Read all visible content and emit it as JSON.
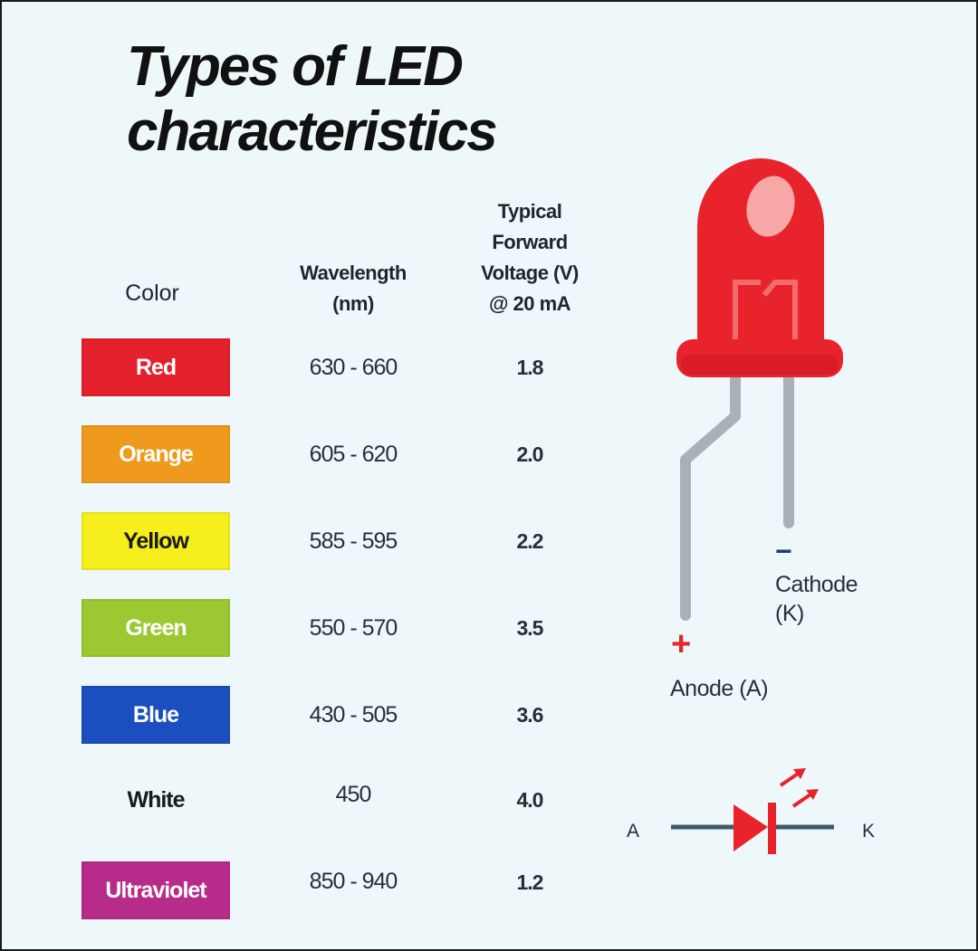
{
  "title": {
    "line1": "Types of LED",
    "line2": "characteristics"
  },
  "headers": {
    "color": "Color",
    "wavelength": [
      "Wavelength",
      "(nm)"
    ],
    "voltage": [
      "Typical",
      "Forward",
      "Voltage (V)",
      "@ 20 mA"
    ]
  },
  "rows": [
    {
      "color": "Red",
      "wavelength": "630 - 660",
      "voltage": "1.8",
      "swatch": "#e3202c",
      "text_color": "#ffffff"
    },
    {
      "color": "Orange",
      "wavelength": "605 - 620",
      "voltage": "2.0",
      "swatch": "#ef9a1c",
      "text_color": "#ffffff"
    },
    {
      "color": "Yellow",
      "wavelength": "585 - 595",
      "voltage": "2.2",
      "swatch": "#f7ee1d",
      "text_color": "#1a1a1a"
    },
    {
      "color": "Green",
      "wavelength": "550 - 570",
      "voltage": "3.5",
      "swatch": "#9cc932",
      "text_color": "#ffffff"
    },
    {
      "color": "Blue",
      "wavelength": "430 - 505",
      "voltage": "3.6",
      "swatch": "#1b4fc0",
      "text_color": "#ffffff"
    },
    {
      "color": "White",
      "wavelength": "450",
      "voltage": "4.0",
      "swatch": "transparent",
      "text_color": "#1a1a1a"
    },
    {
      "color": "Ultraviolet",
      "wavelength": "850 - 940",
      "voltage": "1.2",
      "swatch": "#b72b8a",
      "text_color": "#ffffff"
    }
  ],
  "led": {
    "cathode_sign": "−",
    "cathode_label": [
      "Cathode",
      "(K)"
    ],
    "anode_sign": "+",
    "anode_label": "Anode (A)",
    "symbol_a": "A",
    "symbol_k": "K",
    "body_color": "#e8232c",
    "lead_color": "#a9b1b7"
  }
}
